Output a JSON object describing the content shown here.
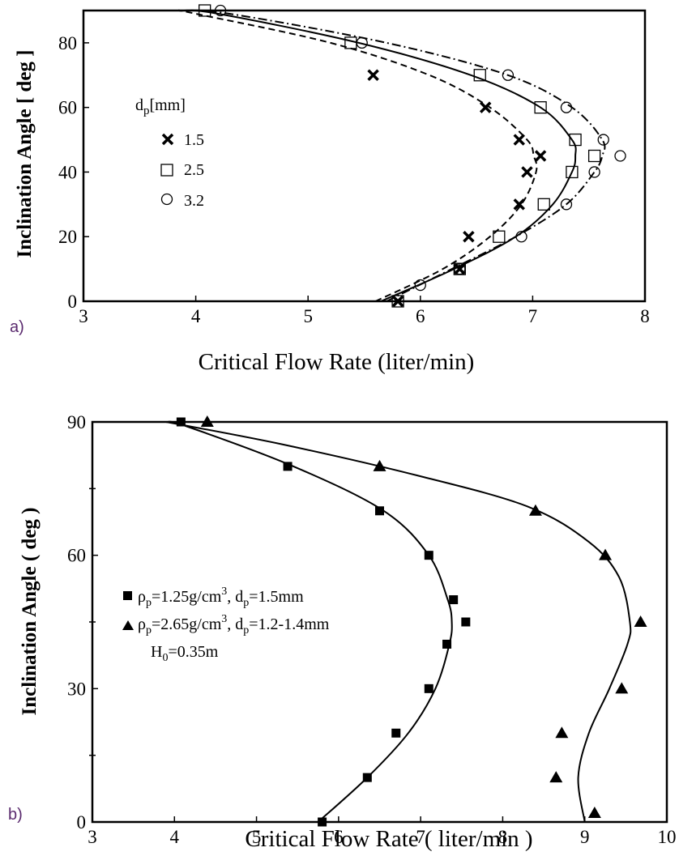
{
  "chart_data": [
    {
      "panel_label": "a)",
      "type": "scatter",
      "xlabel": "Critical Flow Rate (liter/min)",
      "ylabel": "Inclination Angle [ deg ]",
      "xlim": [
        3,
        8
      ],
      "ylim": [
        0,
        90
      ],
      "xticks": [
        "3",
        "4",
        "5",
        "6",
        "7",
        "8"
      ],
      "yticks": [
        "0",
        "20",
        "40",
        "60",
        "80"
      ],
      "legend_title": "d",
      "legend_title_sub": "p",
      "legend_title_unit": "[mm]",
      "legend_placement": "center-left",
      "series": [
        {
          "name": "1.5",
          "marker": "x",
          "points": [
            [
              5.8,
              0
            ],
            [
              6.35,
              10
            ],
            [
              6.43,
              20
            ],
            [
              6.88,
              30
            ],
            [
              6.95,
              40
            ],
            [
              7.07,
              45
            ],
            [
              6.88,
              50
            ],
            [
              6.58,
              60
            ],
            [
              5.58,
              70
            ]
          ],
          "curve": [
            [
              5.6,
              0
            ],
            [
              6.2,
              10
            ],
            [
              6.62,
              20
            ],
            [
              6.9,
              30
            ],
            [
              7.03,
              40
            ],
            [
              7.01,
              45
            ],
            [
              6.95,
              50
            ],
            [
              6.62,
              60
            ],
            [
              6.08,
              70
            ],
            [
              5.2,
              80
            ],
            [
              4.0,
              89
            ],
            [
              3.85,
              90
            ]
          ]
        },
        {
          "name": "2.5",
          "marker": "square",
          "points": [
            [
              5.8,
              0
            ],
            [
              6.35,
              10
            ],
            [
              6.7,
              20
            ],
            [
              7.1,
              30
            ],
            [
              7.35,
              40
            ],
            [
              7.55,
              45
            ],
            [
              7.38,
              50
            ],
            [
              7.07,
              60
            ],
            [
              6.53,
              70
            ],
            [
              5.38,
              80
            ],
            [
              4.08,
              90
            ]
          ],
          "curve": [
            [
              5.65,
              0
            ],
            [
              6.3,
              10
            ],
            [
              6.85,
              20
            ],
            [
              7.18,
              30
            ],
            [
              7.35,
              40
            ],
            [
              7.38,
              45
            ],
            [
              7.35,
              50
            ],
            [
              7.07,
              60
            ],
            [
              6.45,
              70
            ],
            [
              5.45,
              80
            ],
            [
              4.2,
              89
            ],
            [
              3.85,
              90
            ]
          ]
        },
        {
          "name": "3.2",
          "marker": "circle",
          "points": [
            [
              6.0,
              5
            ],
            [
              6.35,
              10
            ],
            [
              6.9,
              20
            ],
            [
              7.3,
              30
            ],
            [
              7.55,
              40
            ],
            [
              7.78,
              45
            ],
            [
              7.63,
              50
            ],
            [
              7.3,
              60
            ],
            [
              6.78,
              70
            ],
            [
              5.48,
              80
            ],
            [
              4.22,
              90
            ]
          ],
          "curve": [
            [
              5.7,
              0
            ],
            [
              6.28,
              10
            ],
            [
              6.85,
              20
            ],
            [
              7.3,
              30
            ],
            [
              7.55,
              40
            ],
            [
              7.62,
              45
            ],
            [
              7.62,
              50
            ],
            [
              7.35,
              60
            ],
            [
              6.78,
              70
            ],
            [
              5.7,
              80
            ],
            [
              4.3,
              89
            ],
            [
              3.85,
              90
            ]
          ]
        }
      ]
    },
    {
      "panel_label": "b)",
      "type": "scatter",
      "xlabel": "Critical  Flow Rate ( liter/min )",
      "ylabel": "Inclination Angle ( deg )",
      "xlim": [
        3,
        10
      ],
      "ylim": [
        0,
        90
      ],
      "xticks": [
        "3",
        "4",
        "5",
        "6",
        "7",
        "8",
        "9",
        "10"
      ],
      "yticks": [
        "0",
        "30",
        "60",
        "90"
      ],
      "legend_placement": "center-left",
      "legend_lines": [
        {
          "rho": "ρ",
          "rho_sub": "p",
          "rho_val": "=1.25g/cm",
          "rho_sup": "3",
          "sep": ",  d",
          "d_sub": "p",
          "d_val": "=1.5mm"
        },
        {
          "rho": "ρ",
          "rho_sub": "p",
          "rho_val": "=2.65g/cm",
          "rho_sup": "3",
          "sep": ",  d",
          "d_sub": "p",
          "d_val": "=1.2-1.4mm"
        }
      ],
      "annotation": {
        "h": "H",
        "h_sub": "0",
        "h_val": "=0.35m"
      },
      "series": [
        {
          "name": "ρp=1.25g/cm3, dp=1.5mm",
          "marker": "filled-square",
          "points": [
            [
              4.08,
              90
            ],
            [
              5.38,
              80
            ],
            [
              6.5,
              70
            ],
            [
              7.1,
              60
            ],
            [
              7.4,
              50
            ],
            [
              7.55,
              45
            ],
            [
              7.32,
              40
            ],
            [
              7.1,
              30
            ],
            [
              6.7,
              20
            ],
            [
              6.35,
              10
            ],
            [
              5.8,
              0
            ]
          ],
          "curve": [
            [
              5.75,
              0
            ],
            [
              6.35,
              10
            ],
            [
              6.85,
              20
            ],
            [
              7.18,
              30
            ],
            [
              7.35,
              40
            ],
            [
              7.38,
              45
            ],
            [
              7.33,
              50
            ],
            [
              7.1,
              60
            ],
            [
              6.55,
              70
            ],
            [
              5.45,
              80
            ],
            [
              4.15,
              89
            ],
            [
              3.9,
              90
            ]
          ]
        },
        {
          "name": "ρp=2.65g/cm3, dp=1.2-1.4mm",
          "marker": "filled-triangle",
          "points": [
            [
              4.4,
              90
            ],
            [
              6.5,
              80
            ],
            [
              8.4,
              70
            ],
            [
              9.25,
              60
            ],
            [
              9.68,
              45
            ],
            [
              9.45,
              30
            ],
            [
              8.72,
              20
            ],
            [
              8.65,
              10
            ],
            [
              9.12,
              2
            ]
          ],
          "curve": [
            [
              9.0,
              0
            ],
            [
              8.92,
              10
            ],
            [
              9.05,
              20
            ],
            [
              9.3,
              30
            ],
            [
              9.52,
              40
            ],
            [
              9.55,
              45
            ],
            [
              9.42,
              55
            ],
            [
              9.05,
              63
            ],
            [
              8.3,
              71
            ],
            [
              6.95,
              78
            ],
            [
              5.3,
              85
            ],
            [
              3.9,
              90
            ]
          ]
        }
      ]
    }
  ]
}
